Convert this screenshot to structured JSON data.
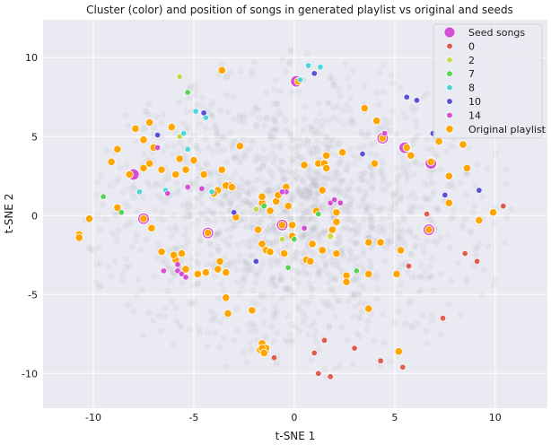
{
  "chart_data": {
    "type": "scatter",
    "title": "Cluster (color) and position of songs in generated playlist vs original and seeds",
    "xlabel": "t-SNE 1",
    "ylabel": "t-SNE 2",
    "xlim": [
      -12.5,
      12.6
    ],
    "ylim": [
      -12.2,
      12.4
    ],
    "xticks": [
      -10,
      -5,
      0,
      5,
      10
    ],
    "yticks": [
      -10,
      -5,
      0,
      5,
      10
    ],
    "grid": true,
    "legend_position": "top-right",
    "colors": {
      "background": "#eaeaf2",
      "grid": "#ffffff",
      "seed": "#d450d2",
      "original": "#ffa500",
      "c0": "#e05c4d",
      "c2": "#c9d64f",
      "c7": "#58d452",
      "c8": "#4fd6dc",
      "c10": "#5a4fd6",
      "c14": "#d450d2",
      "backdrop": "#8a8a95"
    },
    "legend": [
      {
        "label": "Seed songs",
        "key": "seed"
      },
      {
        "label": "0",
        "key": "c0"
      },
      {
        "label": "2",
        "key": "c2"
      },
      {
        "label": "7",
        "key": "c7"
      },
      {
        "label": "8",
        "key": "c8"
      },
      {
        "label": "10",
        "key": "c10"
      },
      {
        "label": "14",
        "key": "c14"
      },
      {
        "label": "Original playlist",
        "key": "original"
      }
    ],
    "series": [
      {
        "name": "Seed songs",
        "key": "seed",
        "points": [
          [
            0.1,
            8.5
          ],
          [
            4.4,
            4.9
          ],
          [
            5.5,
            4.3
          ],
          [
            6.8,
            3.3
          ],
          [
            -8,
            2.6
          ],
          [
            -7.5,
            -0.2
          ],
          [
            -4.3,
            -1.1
          ],
          [
            -0.6,
            -0.6
          ],
          [
            6.7,
            -0.9
          ],
          [
            -1.5,
            -8.5
          ]
        ]
      },
      {
        "name": "0",
        "key": "c0",
        "points": [
          [
            1,
            -8.7
          ],
          [
            1.5,
            -7.9
          ],
          [
            3,
            -8.4
          ],
          [
            4.3,
            -9.2
          ],
          [
            5.4,
            -9.6
          ],
          [
            7.4,
            -6.5
          ],
          [
            8.5,
            -2.4
          ],
          [
            9.1,
            -2.9
          ],
          [
            5.7,
            -3.2
          ],
          [
            6.6,
            0.1
          ],
          [
            10.4,
            0.6
          ],
          [
            -1,
            -9
          ],
          [
            1.2,
            -10
          ],
          [
            1.8,
            -10.2
          ]
        ]
      },
      {
        "name": "2",
        "key": "c2",
        "points": [
          [
            -5.7,
            8.8
          ],
          [
            -1.9,
            0.4
          ],
          [
            -0.6,
            -1.5
          ],
          [
            1.8,
            -1.3
          ],
          [
            -5.7,
            5
          ]
        ]
      },
      {
        "name": "7",
        "key": "c7",
        "points": [
          [
            -5.3,
            7.8
          ],
          [
            -9.5,
            1.2
          ],
          [
            -8.6,
            0.2
          ],
          [
            -0.3,
            -3.3
          ],
          [
            0,
            -1.5
          ],
          [
            1.2,
            0.1
          ],
          [
            -1.5,
            0.6
          ],
          [
            3.1,
            -3.5
          ]
        ]
      },
      {
        "name": "8",
        "key": "c8",
        "points": [
          [
            0.7,
            9.5
          ],
          [
            1.3,
            9.4
          ],
          [
            -4.9,
            6.6
          ],
          [
            -4.4,
            6.2
          ],
          [
            -5.5,
            5.2
          ],
          [
            -5.3,
            4.2
          ],
          [
            -7.7,
            1.5
          ],
          [
            -6.4,
            1.6
          ],
          [
            -4.1,
            1.5
          ],
          [
            0.3,
            8.6
          ]
        ]
      },
      {
        "name": "10",
        "key": "c10",
        "points": [
          [
            5.6,
            7.5
          ],
          [
            6.1,
            7.3
          ],
          [
            6.9,
            5.2
          ],
          [
            7.5,
            1.3
          ],
          [
            9.2,
            1.6
          ],
          [
            3.4,
            3.9
          ],
          [
            -6.8,
            5.1
          ],
          [
            -4.5,
            6.5
          ],
          [
            -3,
            0.2
          ],
          [
            -1.9,
            -2.9
          ],
          [
            1,
            9
          ]
        ]
      },
      {
        "name": "14",
        "key": "c14",
        "points": [
          [
            -6.5,
            -3.5
          ],
          [
            -5.8,
            -3.5
          ],
          [
            -5.6,
            -3.7
          ],
          [
            -5.4,
            -3.9
          ],
          [
            -5.8,
            -3.1
          ],
          [
            -5.3,
            1.8
          ],
          [
            -0.4,
            1.5
          ],
          [
            -0.6,
            1.5
          ],
          [
            0.5,
            -0.8
          ],
          [
            1.8,
            0.8
          ],
          [
            2,
            1
          ],
          [
            2.3,
            0.8
          ],
          [
            -6.3,
            1.4
          ],
          [
            -6.8,
            4.3
          ],
          [
            -4.6,
            1.7
          ],
          [
            4.5,
            5.2
          ]
        ]
      },
      {
        "name": "Original playlist",
        "key": "original",
        "points": [
          [
            -3.6,
            9.2
          ],
          [
            0.2,
            8.5
          ],
          [
            3.5,
            6.8
          ],
          [
            4.1,
            6
          ],
          [
            4.4,
            4.9
          ],
          [
            5.6,
            4.3
          ],
          [
            5.8,
            3.8
          ],
          [
            6.8,
            3.4
          ],
          [
            7.2,
            4.7
          ],
          [
            8.4,
            4.5
          ],
          [
            8.6,
            3
          ],
          [
            7.7,
            2.5
          ],
          [
            9.9,
            0.2
          ],
          [
            9.2,
            -0.3
          ],
          [
            7.7,
            0.8
          ],
          [
            6.7,
            -0.9
          ],
          [
            5.3,
            -2.2
          ],
          [
            3.7,
            -1.7
          ],
          [
            3.7,
            -3.7
          ],
          [
            5.1,
            -3.7
          ],
          [
            2.6,
            -3.8
          ],
          [
            2.6,
            -4.2
          ],
          [
            3.7,
            -5.9
          ],
          [
            5.2,
            -8.6
          ],
          [
            -7.2,
            5.9
          ],
          [
            -6.1,
            5.6
          ],
          [
            -7.9,
            5.5
          ],
          [
            -7.5,
            4.8
          ],
          [
            -8.8,
            4.2
          ],
          [
            -9.1,
            3.4
          ],
          [
            -8.2,
            2.6
          ],
          [
            -7.5,
            3
          ],
          [
            -7.2,
            3.3
          ],
          [
            -7,
            4.3
          ],
          [
            -5.7,
            3.6
          ],
          [
            -5,
            3.5
          ],
          [
            -5.4,
            2.9
          ],
          [
            -4.5,
            2.6
          ],
          [
            -3.6,
            2.9
          ],
          [
            -3.2,
            1.9
          ],
          [
            -3.4,
            1.9
          ],
          [
            -3.1,
            1.8
          ],
          [
            -3.8,
            1.6
          ],
          [
            -4,
            1.4
          ],
          [
            -5.9,
            2.6
          ],
          [
            -6.6,
            2.9
          ],
          [
            -7.5,
            -0.2
          ],
          [
            -7.1,
            -0.8
          ],
          [
            -8.8,
            0.5
          ],
          [
            -10.2,
            -0.2
          ],
          [
            -10.7,
            -1.2
          ],
          [
            -10.7,
            -1.4
          ],
          [
            -4.3,
            -1.1
          ],
          [
            -4.4,
            -3.6
          ],
          [
            -3.8,
            -3.4
          ],
          [
            -3.7,
            -2.9
          ],
          [
            -3.4,
            -3.6
          ],
          [
            -3.4,
            -5.2
          ],
          [
            -3.3,
            -6.2
          ],
          [
            -2.1,
            -6
          ],
          [
            -4.8,
            -3.7
          ],
          [
            -5.4,
            -3.4
          ],
          [
            -5.9,
            -2.8
          ],
          [
            -6,
            -2.5
          ],
          [
            -5.6,
            -2.4
          ],
          [
            -6.6,
            -2.3
          ],
          [
            -4.3,
            -1.1
          ],
          [
            -2.9,
            -0.1
          ],
          [
            -1.6,
            0.8
          ],
          [
            -1.6,
            1.2
          ],
          [
            -1.2,
            0.3
          ],
          [
            -0.9,
            0.9
          ],
          [
            -0.8,
            1.3
          ],
          [
            -0.4,
            1.8
          ],
          [
            -0.3,
            0.6
          ],
          [
            -0.1,
            -0.6
          ],
          [
            -0.6,
            -0.6
          ],
          [
            -0.1,
            -1.3
          ],
          [
            -1.6,
            -1.8
          ],
          [
            -1.4,
            -2.2
          ],
          [
            -1.2,
            -2.3
          ],
          [
            -0.5,
            -2.4
          ],
          [
            0.6,
            -2.8
          ],
          [
            0.8,
            -2.9
          ],
          [
            0.9,
            -1.8
          ],
          [
            1.4,
            -2.2
          ],
          [
            1.8,
            -1.3
          ],
          [
            1.9,
            -0.9
          ],
          [
            2.1,
            -0.4
          ],
          [
            2.1,
            0.2
          ],
          [
            1.1,
            0.3
          ],
          [
            1.4,
            1.6
          ],
          [
            1.2,
            3.3
          ],
          [
            1.5,
            3.3
          ],
          [
            1.6,
            3.8
          ],
          [
            2.4,
            4
          ],
          [
            4,
            3.3
          ],
          [
            4.3,
            -1.7
          ],
          [
            -1.6,
            -8.1
          ],
          [
            -1.7,
            -8.5
          ],
          [
            -1.4,
            -8.4
          ],
          [
            -1.6,
            -8.4
          ],
          [
            2.1,
            -2.4
          ],
          [
            -1.8,
            -0.9
          ],
          [
            -2.7,
            4.4
          ],
          [
            0.5,
            3.2
          ],
          [
            1.6,
            3
          ],
          [
            -1.5,
            -8.7
          ]
        ]
      }
    ]
  }
}
